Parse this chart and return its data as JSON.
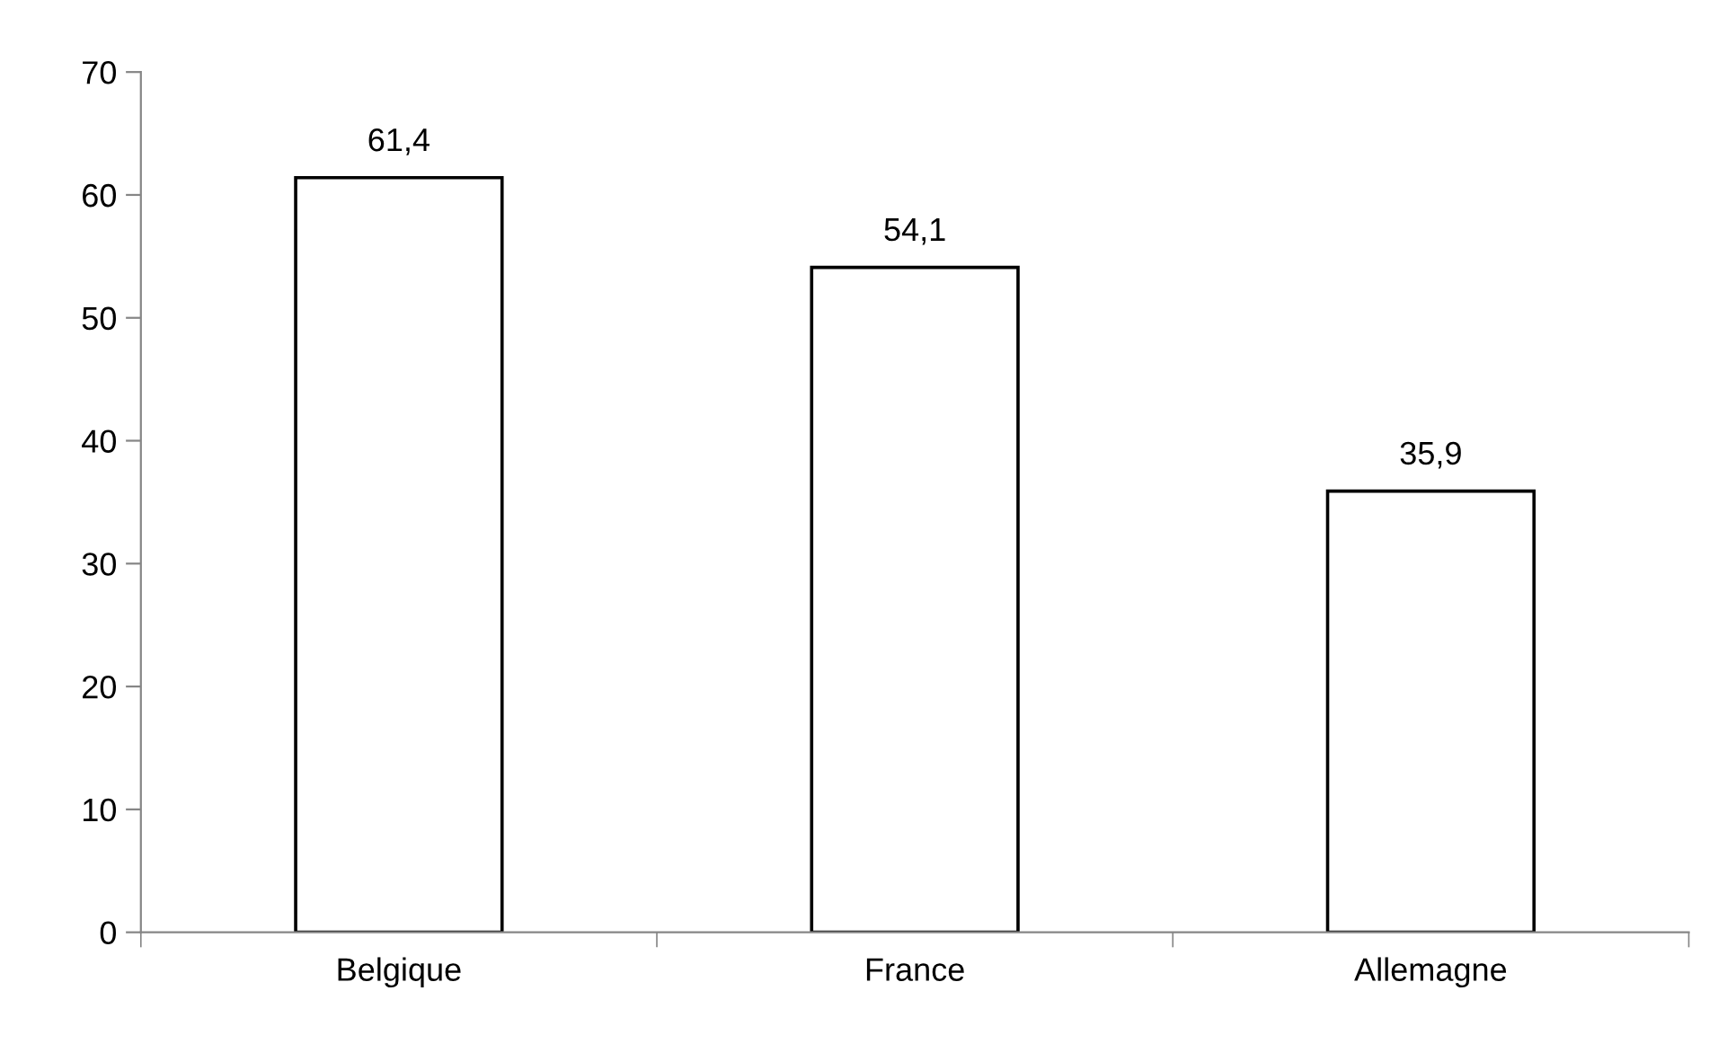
{
  "chart_data": {
    "type": "bar",
    "categories": [
      "Belgique",
      "France",
      "Allemagne"
    ],
    "values": [
      61.4,
      54.1,
      35.9
    ],
    "value_labels": [
      "61,4",
      "54,1",
      "35,9"
    ],
    "color": "#ffffff",
    "ylim": [
      0,
      70
    ],
    "yticks": [
      0,
      10,
      20,
      30,
      40,
      50,
      60,
      70
    ],
    "grid": false,
    "legend": false
  }
}
